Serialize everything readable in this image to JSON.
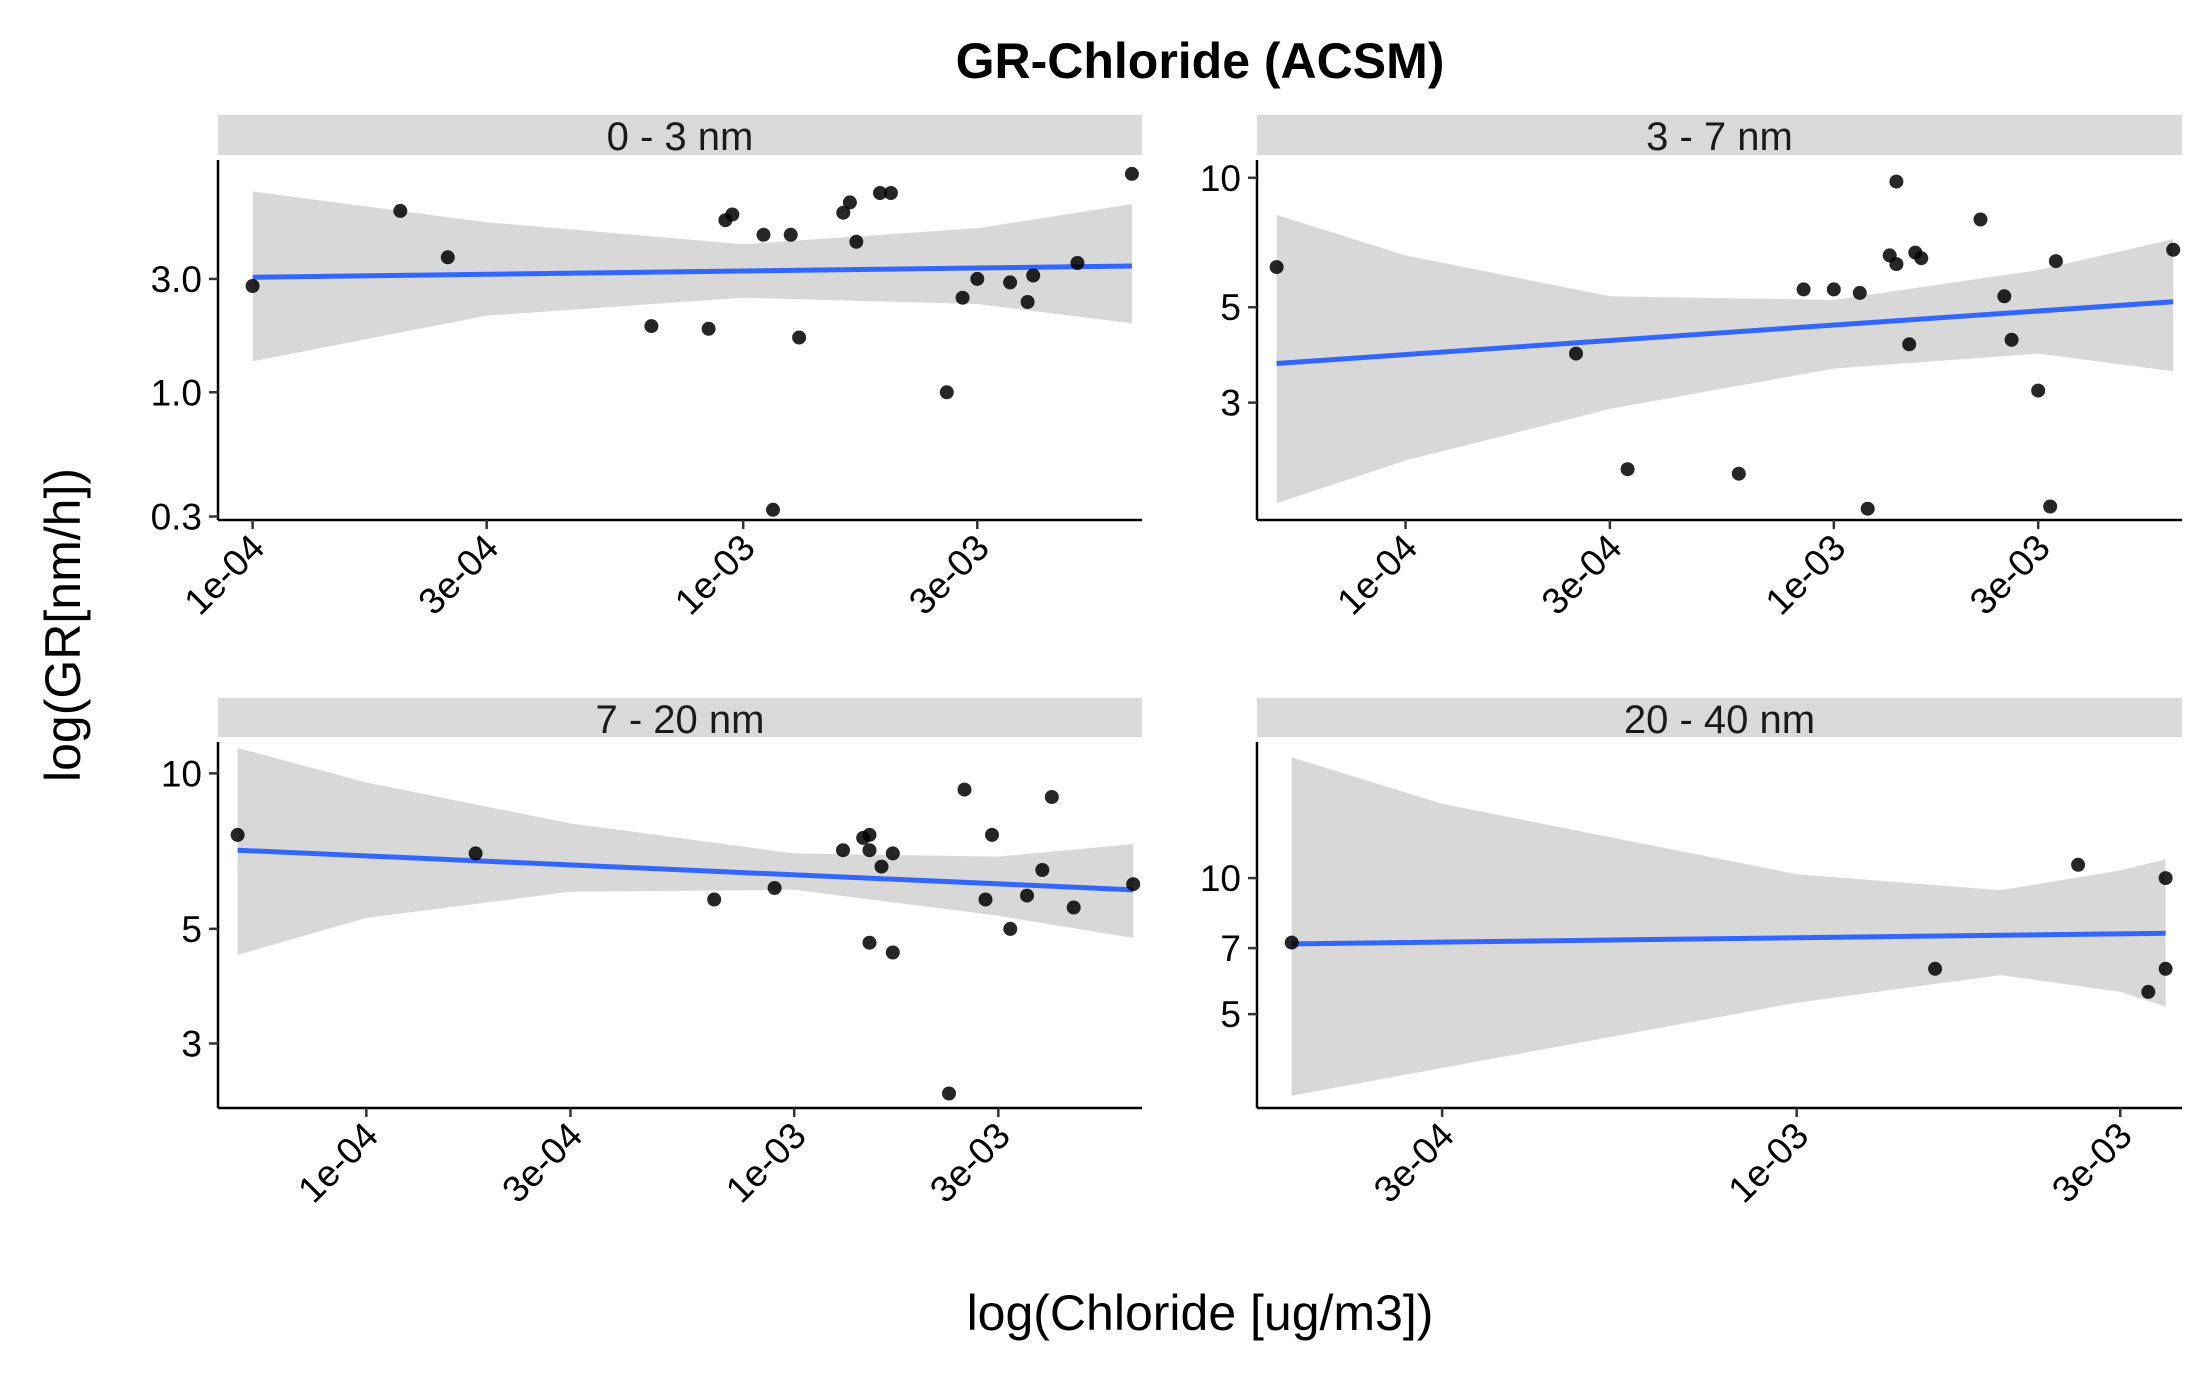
{
  "figure": {
    "title": "GR-Chloride (ACSM)",
    "xlabel": "log(Chloride [ug/m3])",
    "ylabel": "log(GR[nm/h])"
  },
  "style": {
    "point_color": "#000000",
    "line_color": "#3366FF",
    "ribbon_color": "#D4D4D4",
    "strip_color": "#D9D9D9"
  },
  "chart_data": [
    {
      "type": "scatter",
      "panel": "0 - 3 nm",
      "xscale": "log",
      "yscale": "log",
      "xlim": [
        8.5e-05,
        0.0065
      ],
      "ylim": [
        0.29,
        9.5
      ],
      "xticks": [
        0.0001,
        0.0003,
        0.001,
        0.003
      ],
      "xtick_labels": [
        "1e-04",
        "3e-04",
        "1e-03",
        "3e-03"
      ],
      "yticks": [
        0.3,
        1.0,
        3.0
      ],
      "ytick_labels": [
        "0.3",
        "1.0",
        "3.0"
      ],
      "points": [
        [
          0.0001,
          2.8
        ],
        [
          0.0002,
          5.8
        ],
        [
          0.00025,
          3.7
        ],
        [
          0.00065,
          1.9
        ],
        [
          0.00085,
          1.85
        ],
        [
          0.00092,
          5.3
        ],
        [
          0.00095,
          5.6
        ],
        [
          0.0011,
          4.6
        ],
        [
          0.00115,
          0.32
        ],
        [
          0.00125,
          4.6
        ],
        [
          0.0013,
          1.7
        ],
        [
          0.0016,
          5.7
        ],
        [
          0.00165,
          6.3
        ],
        [
          0.0017,
          4.3
        ],
        [
          0.0019,
          6.9
        ],
        [
          0.002,
          6.9
        ],
        [
          0.0026,
          1.0
        ],
        [
          0.0028,
          2.5
        ],
        [
          0.003,
          3.0
        ],
        [
          0.0035,
          2.9
        ],
        [
          0.0038,
          2.4
        ],
        [
          0.0039,
          3.1
        ],
        [
          0.0048,
          3.5
        ],
        [
          0.0062,
          8.3
        ]
      ],
      "fit": {
        "x": [
          0.0001,
          0.0062
        ],
        "y": [
          3.05,
          3.4
        ]
      },
      "band": {
        "x": [
          0.0001,
          0.0003,
          0.001,
          0.003,
          0.0062
        ],
        "lower": [
          1.35,
          2.1,
          2.5,
          2.35,
          1.95
        ],
        "upper": [
          7.0,
          5.2,
          4.2,
          4.9,
          6.2
        ]
      }
    },
    {
      "type": "scatter",
      "panel": "3 - 7 nm",
      "xscale": "log",
      "yscale": "log",
      "xlim": [
        4.5e-05,
        0.0065
      ],
      "ylim": [
        1.6,
        11
      ],
      "xticks": [
        0.0001,
        0.0003,
        0.001,
        0.003
      ],
      "xtick_labels": [
        "1e-04",
        "3e-04",
        "1e-03",
        "3e-03"
      ],
      "yticks": [
        3,
        5,
        10
      ],
      "ytick_labels": [
        "3",
        "5",
        "10"
      ],
      "points": [
        [
          5e-05,
          6.2
        ],
        [
          0.00025,
          3.9
        ],
        [
          0.00033,
          2.1
        ],
        [
          0.0006,
          2.05
        ],
        [
          0.00085,
          5.5
        ],
        [
          0.001,
          5.5
        ],
        [
          0.00115,
          5.4
        ],
        [
          0.0012,
          1.7
        ],
        [
          0.00135,
          6.6
        ],
        [
          0.0014,
          6.3
        ],
        [
          0.0014,
          9.8
        ],
        [
          0.0015,
          4.1
        ],
        [
          0.00155,
          6.7
        ],
        [
          0.0016,
          6.5
        ],
        [
          0.0022,
          8.0
        ],
        [
          0.0025,
          5.3
        ],
        [
          0.0026,
          4.2
        ],
        [
          0.003,
          3.2
        ],
        [
          0.0032,
          1.72
        ],
        [
          0.0033,
          6.4
        ],
        [
          0.0062,
          6.8
        ]
      ],
      "fit": {
        "x": [
          5e-05,
          0.0062
        ],
        "y": [
          3.7,
          5.15
        ]
      },
      "band": {
        "x": [
          5e-05,
          0.0001,
          0.0003,
          0.001,
          0.003,
          0.0062
        ],
        "lower": [
          1.75,
          2.2,
          2.9,
          3.6,
          3.9,
          3.55
        ],
        "upper": [
          8.2,
          6.6,
          5.3,
          5.2,
          6.1,
          7.2
        ]
      }
    },
    {
      "type": "scatter",
      "panel": "7 - 20 nm",
      "xscale": "log",
      "yscale": "log",
      "xlim": [
        4.5e-05,
        0.0065
      ],
      "ylim": [
        2.25,
        11.5
      ],
      "xticks": [
        0.0001,
        0.0003,
        0.001,
        0.003
      ],
      "xtick_labels": [
        "1e-04",
        "3e-04",
        "1e-03",
        "3e-03"
      ],
      "yticks": [
        3,
        5,
        10
      ],
      "ytick_labels": [
        "3",
        "5",
        "10"
      ],
      "points": [
        [
          5e-05,
          7.6
        ],
        [
          0.00018,
          7.0
        ],
        [
          0.00065,
          5.7
        ],
        [
          0.0009,
          6.0
        ],
        [
          0.0013,
          7.1
        ],
        [
          0.00145,
          7.5
        ],
        [
          0.0015,
          7.1
        ],
        [
          0.0015,
          4.7
        ],
        [
          0.0015,
          7.6
        ],
        [
          0.0016,
          6.6
        ],
        [
          0.0017,
          4.5
        ],
        [
          0.0017,
          7.0
        ],
        [
          0.0023,
          2.4
        ],
        [
          0.0025,
          9.3
        ],
        [
          0.0028,
          5.7
        ],
        [
          0.0029,
          7.6
        ],
        [
          0.0032,
          5.0
        ],
        [
          0.0035,
          5.8
        ],
        [
          0.0038,
          6.5
        ],
        [
          0.004,
          9.0
        ],
        [
          0.0045,
          5.5
        ],
        [
          0.0062,
          6.1
        ]
      ],
      "fit": {
        "x": [
          5e-05,
          0.0062
        ],
        "y": [
          7.1,
          5.95
        ]
      },
      "band": {
        "x": [
          5e-05,
          0.0001,
          0.0003,
          0.001,
          0.003,
          0.0062
        ],
        "lower": [
          4.45,
          5.25,
          5.9,
          5.95,
          5.3,
          4.8
        ],
        "upper": [
          11.2,
          9.6,
          8.0,
          7.0,
          6.9,
          7.3
        ]
      }
    },
    {
      "type": "scatter",
      "panel": "20 - 40 nm",
      "xscale": "log",
      "yscale": "log",
      "xlim": [
        0.00016,
        0.0037
      ],
      "ylim": [
        3.1,
        20
      ],
      "xticks": [
        0.0003,
        0.001,
        0.003
      ],
      "xtick_labels": [
        "3e-04",
        "1e-03",
        "3e-03"
      ],
      "yticks": [
        5,
        7,
        10
      ],
      "ytick_labels": [
        "5",
        "7",
        "10"
      ],
      "points": [
        [
          0.00018,
          7.2
        ],
        [
          0.0016,
          6.3
        ],
        [
          0.0026,
          10.7
        ],
        [
          0.0033,
          5.6
        ],
        [
          0.0035,
          6.3
        ],
        [
          0.0035,
          10.0
        ]
      ],
      "fit": {
        "x": [
          0.00018,
          0.0035
        ],
        "y": [
          7.15,
          7.55
        ]
      },
      "band": {
        "x": [
          0.00018,
          0.0003,
          0.001,
          0.002,
          0.003,
          0.0035
        ],
        "lower": [
          3.3,
          3.8,
          5.3,
          6.1,
          5.6,
          5.2
        ],
        "upper": [
          18.5,
          14.6,
          10.2,
          9.4,
          10.4,
          11.0
        ]
      }
    }
  ]
}
